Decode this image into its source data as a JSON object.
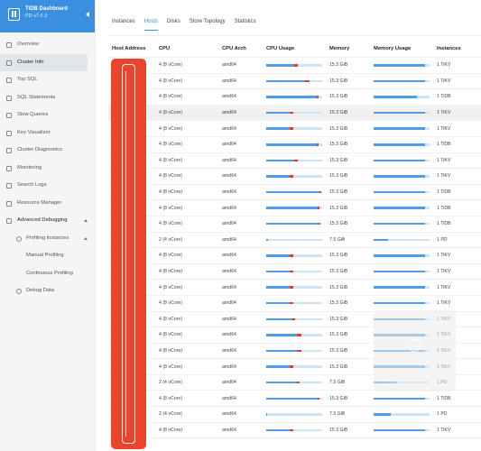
{
  "app": {
    "title": "TiDB Dashboard",
    "subtitle": "PD v7.6.3"
  },
  "sidebar": {
    "items": [
      {
        "label": "Overview",
        "icon": "overview-icon",
        "kind": "top"
      },
      {
        "label": "Cluster Info",
        "icon": "cluster-info-icon",
        "kind": "top",
        "active": true
      },
      {
        "label": "Top SQL",
        "icon": "top-sql-icon",
        "kind": "top"
      },
      {
        "label": "SQL Statements",
        "icon": "sql-statements-icon",
        "kind": "top"
      },
      {
        "label": "Slow Queries",
        "icon": "slow-queries-icon",
        "kind": "top"
      },
      {
        "label": "Key Visualizer",
        "icon": "key-visualizer-icon",
        "kind": "top"
      },
      {
        "label": "Cluster Diagnostics",
        "icon": "diagnostics-icon",
        "kind": "top"
      },
      {
        "label": "Monitoring",
        "icon": "monitoring-icon",
        "kind": "top"
      },
      {
        "label": "Search Logs",
        "icon": "search-logs-icon",
        "kind": "top"
      },
      {
        "label": "Resource Manager",
        "icon": "resource-manager-icon",
        "kind": "top"
      },
      {
        "label": "Advanced Debugging",
        "icon": "debugging-icon",
        "kind": "parent"
      },
      {
        "label": "Profiling Instances",
        "icon": "profiling-icon",
        "kind": "sub"
      },
      {
        "label": "Manual Profiling",
        "icon": "",
        "kind": "subsub"
      },
      {
        "label": "Continuous Profiling",
        "icon": "",
        "kind": "subsub"
      },
      {
        "label": "Debug Data",
        "icon": "debug-data-icon",
        "kind": "sub"
      }
    ]
  },
  "tabs": [
    {
      "label": "Instances",
      "active": false
    },
    {
      "label": "Hosts",
      "active": true
    },
    {
      "label": "Disks",
      "active": false
    },
    {
      "label": "Store Topology",
      "active": false
    },
    {
      "label": "Statistics",
      "active": false
    }
  ],
  "table": {
    "headers": {
      "host": "Host Address",
      "cpu": "CPU",
      "arch": "CPU Arch",
      "cpu_usage": "CPU Usage",
      "memory": "Memory",
      "memory_usage": "Memory Usage",
      "instances": "Instances"
    },
    "rows": [
      {
        "cpu": "4 (8 vCore)",
        "arch": "amd64",
        "cpu_used": 0.5,
        "cpu_red": 0.06,
        "memory": "15.3 GiB",
        "mem_used": 0.92,
        "instances": "1 TiKV"
      },
      {
        "cpu": "4 (8 vCore)",
        "arch": "amd64",
        "cpu_used": 0.7,
        "cpu_red": 0.08,
        "memory": "15.3 GiB",
        "mem_used": 0.92,
        "instances": "1 TiKV"
      },
      {
        "cpu": "4 (8 vCore)",
        "arch": "amd64",
        "cpu_used": 0.9,
        "cpu_red": 0.03,
        "memory": "15.3 GiB",
        "mem_used": 0.78,
        "instances": "1 TiDB"
      },
      {
        "cpu": "4 (8 vCore)",
        "arch": "amd64",
        "cpu_used": 0.42,
        "cpu_red": 0.06,
        "memory": "15.3 GiB",
        "mem_used": 0.92,
        "instances": "1 TiKV",
        "highlight": true
      },
      {
        "cpu": "4 (8 vCore)",
        "arch": "amd64",
        "cpu_used": 0.42,
        "cpu_red": 0.06,
        "memory": "15.3 GiB",
        "mem_used": 0.92,
        "instances": "1 TiKV"
      },
      {
        "cpu": "4 (8 vCore)",
        "arch": "amd64",
        "cpu_used": 0.9,
        "cpu_red": 0.03,
        "memory": "15.3 GiB",
        "mem_used": 0.92,
        "instances": "1 TiDB"
      },
      {
        "cpu": "4 (8 vCore)",
        "arch": "amd64",
        "cpu_used": 0.5,
        "cpu_red": 0.06,
        "memory": "15.3 GiB",
        "mem_used": 0.92,
        "instances": "1 TiKV"
      },
      {
        "cpu": "4 (8 vCore)",
        "arch": "amd64",
        "cpu_used": 0.42,
        "cpu_red": 0.06,
        "memory": "15.3 GiB",
        "mem_used": 0.92,
        "instances": "1 TiKV"
      },
      {
        "cpu": "4 (8 vCore)",
        "arch": "amd64",
        "cpu_used": 0.95,
        "cpu_red": 0.03,
        "memory": "15.3 GiB",
        "mem_used": 0.92,
        "instances": "1 TiDB"
      },
      {
        "cpu": "4 (8 vCore)",
        "arch": "amd64",
        "cpu_used": 0.92,
        "cpu_red": 0.03,
        "memory": "15.3 GiB",
        "mem_used": 0.92,
        "instances": "1 TiDB"
      },
      {
        "cpu": "4 (8 vCore)",
        "arch": "amd64",
        "cpu_used": 0.95,
        "cpu_red": 0.02,
        "memory": "15.3 GiB",
        "mem_used": 0.92,
        "instances": "1 TiDB"
      },
      {
        "cpu": "2 (4 vCore)",
        "arch": "amd64",
        "cpu_used": 0.03,
        "cpu_red": 0.0,
        "memory": "7.5 GiB",
        "mem_used": 0.25,
        "instances": "1 PD"
      },
      {
        "cpu": "4 (8 vCore)",
        "arch": "amd64",
        "cpu_used": 0.42,
        "cpu_red": 0.06,
        "memory": "15.3 GiB",
        "mem_used": 0.92,
        "instances": "1 TiKV"
      },
      {
        "cpu": "4 (8 vCore)",
        "arch": "amd64",
        "cpu_used": 0.42,
        "cpu_red": 0.06,
        "memory": "15.3 GiB",
        "mem_used": 0.92,
        "instances": "1 TiKV"
      },
      {
        "cpu": "4 (8 vCore)",
        "arch": "amd64",
        "cpu_used": 0.42,
        "cpu_red": 0.06,
        "memory": "15.3 GiB",
        "mem_used": 0.92,
        "instances": "1 TiKV"
      },
      {
        "cpu": "4 (8 vCore)",
        "arch": "amd64",
        "cpu_used": 0.42,
        "cpu_red": 0.06,
        "memory": "15.3 GiB",
        "mem_used": 0.92,
        "instances": "1 TiKV"
      },
      {
        "cpu": "4 (8 vCore)",
        "arch": "amd64",
        "cpu_used": 0.45,
        "cpu_red": 0.06,
        "memory": "15.3 GiB",
        "mem_used": 0.92,
        "instances": "1 TiKV"
      },
      {
        "cpu": "4 (8 vCore)",
        "arch": "amd64",
        "cpu_used": 0.55,
        "cpu_red": 0.08,
        "memory": "15.3 GiB",
        "mem_used": 0.92,
        "instances": "1 TiKV"
      },
      {
        "cpu": "4 (8 vCore)",
        "arch": "amd64",
        "cpu_used": 0.55,
        "cpu_red": 0.08,
        "memory": "15.3 GiB",
        "mem_used": 0.92,
        "instances": "1 TiKV"
      },
      {
        "cpu": "4 (8 vCore)",
        "arch": "amd64",
        "cpu_used": 0.42,
        "cpu_red": 0.06,
        "memory": "15.3 GiB",
        "mem_used": 0.92,
        "instances": "1 TiKV"
      },
      {
        "cpu": "2 (4 vCore)",
        "arch": "amd64",
        "cpu_used": 0.55,
        "cpu_red": 0.05,
        "memory": "7.5 GiB",
        "mem_used": 0.4,
        "instances": "1 PD"
      },
      {
        "cpu": "4 (8 vCore)",
        "arch": "amd64",
        "cpu_used": 0.92,
        "cpu_red": 0.03,
        "memory": "15.3 GiB",
        "mem_used": 0.92,
        "instances": "1 TiDB"
      },
      {
        "cpu": "2 (4 vCore)",
        "arch": "amd64",
        "cpu_used": 0.02,
        "cpu_red": 0.0,
        "memory": "7.5 GiB",
        "mem_used": 0.3,
        "instances": "1 PD"
      },
      {
        "cpu": "4 (8 vCore)",
        "arch": "amd64",
        "cpu_used": 0.42,
        "cpu_red": 0.06,
        "memory": "15.3 GiB",
        "mem_used": 0.92,
        "instances": "1 TiKV"
      }
    ]
  },
  "colors": {
    "brand": "#3b8fe0",
    "bar_fill": "#4c9fe6",
    "bar_track": "#cfe3f8",
    "bar_alert": "#e53935",
    "redaction": "#e8452d"
  }
}
